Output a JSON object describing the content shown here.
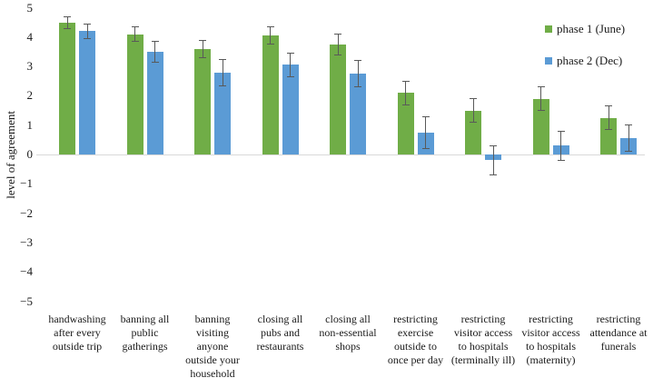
{
  "chart_data": {
    "type": "bar",
    "title": "",
    "xlabel": "",
    "ylabel": "level of agreement",
    "ylim": [
      -5,
      5
    ],
    "yticks": [
      5,
      4,
      3,
      2,
      1,
      0,
      -1,
      -2,
      -3,
      -4,
      -5
    ],
    "grid": false,
    "legend_position": "top-right",
    "categories": [
      "handwashing\nafter every\noutside trip",
      "banning all\npublic\ngatherings",
      "banning\nvisiting\nanyone\noutside your\nhousehold",
      "closing all\npubs and\nrestaurants",
      "closing all\nnon-essential\nshops",
      "restricting\nexercise\noutside to\nonce per day",
      "restricting\nvisitor access\nto hospitals\n(terminally ill)",
      "restricting\nvisitor access\nto hospitals\n(maternity)",
      "restricting\nattendance at\nfunerals"
    ],
    "series": [
      {
        "name": "phase 1 (June)",
        "color": "#70AD47",
        "values": [
          4.5,
          4.1,
          3.6,
          4.05,
          3.75,
          2.1,
          1.5,
          1.9,
          1.25
        ],
        "errors": [
          0.2,
          0.25,
          0.3,
          0.3,
          0.35,
          0.4,
          0.4,
          0.4,
          0.4
        ]
      },
      {
        "name": "phase 2 (Dec)",
        "color": "#5B9BD5",
        "values": [
          4.2,
          3.5,
          2.8,
          3.05,
          2.75,
          0.75,
          -0.2,
          0.3,
          0.55
        ],
        "errors": [
          0.25,
          0.35,
          0.45,
          0.4,
          0.45,
          0.55,
          0.5,
          0.5,
          0.45
        ]
      }
    ]
  },
  "colors": {
    "error_bar": "#595959",
    "axis_line": "#d9d9d9",
    "text": "#1a1a1a",
    "background": "#ffffff"
  }
}
